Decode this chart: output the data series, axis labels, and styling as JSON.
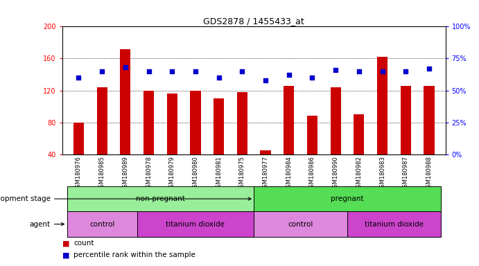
{
  "title": "GDS2878 / 1455433_at",
  "samples": [
    "GSM180976",
    "GSM180985",
    "GSM180989",
    "GSM180978",
    "GSM180979",
    "GSM180980",
    "GSM180981",
    "GSM180975",
    "GSM180977",
    "GSM180984",
    "GSM180986",
    "GSM180990",
    "GSM180982",
    "GSM180983",
    "GSM180987",
    "GSM180988"
  ],
  "counts": [
    80,
    124,
    172,
    120,
    116,
    120,
    110,
    118,
    45,
    126,
    88,
    124,
    90,
    162,
    126,
    126
  ],
  "percentiles": [
    60,
    65,
    68,
    65,
    65,
    65,
    60,
    65,
    58,
    62,
    60,
    66,
    65,
    65,
    65,
    67
  ],
  "bar_color": "#cc0000",
  "dot_color": "#0000cc",
  "ylim_left": [
    40,
    200
  ],
  "ylim_right": [
    0,
    100
  ],
  "yticks_left": [
    40,
    80,
    120,
    160,
    200
  ],
  "yticks_right": [
    0,
    25,
    50,
    75,
    100
  ],
  "dev_stage_groups": [
    {
      "label": "non-pregnant",
      "start": 0,
      "end": 7,
      "color": "#99ee99"
    },
    {
      "label": "pregnant",
      "start": 8,
      "end": 15,
      "color": "#55dd55"
    }
  ],
  "agent_groups": [
    {
      "label": "control",
      "start": 0,
      "end": 2,
      "color": "#dd88dd"
    },
    {
      "label": "titanium dioxide",
      "start": 3,
      "end": 7,
      "color": "#cc44cc"
    },
    {
      "label": "control",
      "start": 8,
      "end": 11,
      "color": "#dd88dd"
    },
    {
      "label": "titanium dioxide",
      "start": 12,
      "end": 15,
      "color": "#cc44cc"
    }
  ],
  "legend_count_color": "#cc0000",
  "legend_pct_color": "#0000cc",
  "left_label_color": "#000000",
  "title_fontsize": 9
}
